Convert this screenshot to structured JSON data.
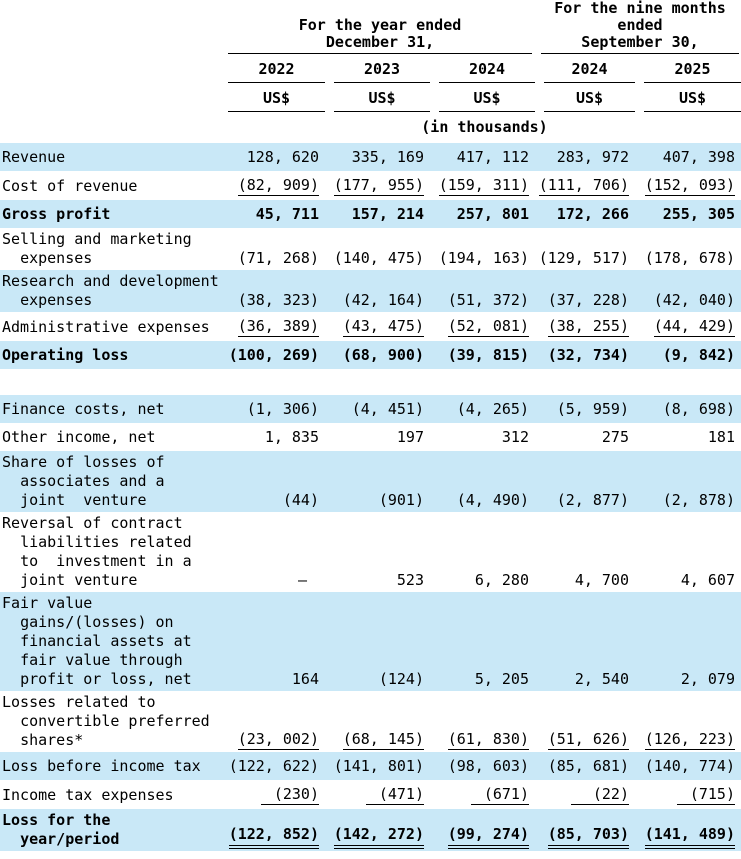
{
  "header": {
    "group_year_label": "For the year ended\nDecember  31,",
    "group_nine_months_label": "For the nine months\nended\nSeptember 30,",
    "years": [
      "2022",
      "2023",
      "2024",
      "2024",
      "2025"
    ],
    "currency_units": [
      "US$",
      "US$",
      "US$",
      "US$",
      "US$"
    ],
    "scale_note": "(in thousands)"
  },
  "colors": {
    "row_highlight": "#c9e8f7",
    "text": "#000000",
    "rule": "#000000"
  },
  "rows": [
    {
      "label": "Revenue",
      "bg": "blue",
      "bold": false,
      "underline": "none",
      "values": [
        "128, 620",
        "335, 169",
        "417, 112",
        "283, 972",
        "407, 398"
      ]
    },
    {
      "label": "Cost of revenue",
      "bg": "white",
      "bold": false,
      "underline": "single",
      "values": [
        "(82, 909)",
        "(177, 955)",
        "(159, 311)",
        "(111, 706)",
        "(152, 093)"
      ]
    },
    {
      "label": "Gross profit",
      "bg": "blue",
      "bold": true,
      "underline": "none",
      "values": [
        "45, 711",
        "157, 214",
        "257, 801",
        "172, 266",
        "255, 305"
      ]
    },
    {
      "label": "Selling and marketing\n  expenses",
      "bg": "white",
      "bold": false,
      "underline": "none",
      "values": [
        "(71, 268)",
        "(140, 475)",
        "(194, 163)",
        "(129, 517)",
        "(178, 678)"
      ]
    },
    {
      "label": "Research and development\n  expenses",
      "bg": "blue",
      "bold": false,
      "underline": "none",
      "values": [
        "(38, 323)",
        "(42, 164)",
        "(51, 372)",
        "(37, 228)",
        "(42, 040)"
      ]
    },
    {
      "label": "Administrative expenses",
      "bg": "white",
      "bold": false,
      "underline": "single",
      "values": [
        "(36, 389)",
        "(43, 475)",
        "(52, 081)",
        "(38, 255)",
        "(44, 429)"
      ]
    },
    {
      "label": "Operating loss",
      "bg": "blue",
      "bold": true,
      "underline": "none",
      "values": [
        "(100, 269)",
        "(68, 900)",
        "(39, 815)",
        "(32, 734)",
        "(9, 842)"
      ]
    },
    {
      "spacer": true
    },
    {
      "label": "Finance costs, net",
      "bg": "blue",
      "bold": false,
      "underline": "none",
      "values": [
        "(1, 306)",
        "(4, 451)",
        "(4, 265)",
        "(5, 959)",
        "(8, 698)"
      ]
    },
    {
      "label": "Other income, net",
      "bg": "white",
      "bold": false,
      "underline": "none",
      "values": [
        "1, 835",
        "197",
        "312",
        "275",
        "181"
      ]
    },
    {
      "label": "Share of losses of\n  associates and a\n  joint  venture",
      "bg": "blue",
      "bold": false,
      "underline": "none",
      "values": [
        "(44)",
        "(901)",
        "(4, 490)",
        "(2, 877)",
        "(2, 878)"
      ]
    },
    {
      "label": "Reversal of contract\n  liabilities related\n  to  investment in a\n  joint venture",
      "bg": "white",
      "bold": false,
      "underline": "none",
      "values": [
        "—",
        "523",
        "6, 280",
        "4, 700",
        "4, 607"
      ]
    },
    {
      "label": "Fair value\n  gains/(losses) on\n  financial assets at\n  fair value through\n  profit or loss, net",
      "bg": "blue",
      "bold": false,
      "underline": "none",
      "values": [
        "164",
        "(124)",
        "5, 205",
        "2, 540",
        "2, 079"
      ]
    },
    {
      "label": "Losses related to\n  convertible preferred\n  shares*",
      "bg": "white",
      "bold": false,
      "underline": "single",
      "values": [
        "(23, 002)",
        "(68, 145)",
        "(61, 830)",
        "(51, 626)",
        "(126, 223)"
      ]
    },
    {
      "label": "Loss before income tax",
      "bg": "blue",
      "bold": false,
      "underline": "none",
      "values": [
        "(122, 622)",
        "(141, 801)",
        "(98, 603)",
        "(85, 681)",
        "(140, 774)"
      ]
    },
    {
      "label": "Income tax expenses",
      "bg": "white",
      "bold": false,
      "underline": "single",
      "values": [
        "(230)",
        "(471)",
        "(671)",
        "(22)",
        "(715)"
      ]
    },
    {
      "label": "Loss for the\n  year/period",
      "bg": "blue",
      "bold": true,
      "underline": "double",
      "values": [
        "(122, 852)",
        "(142, 272)",
        "(99, 274)",
        "(85, 703)",
        "(141, 489)"
      ]
    }
  ]
}
